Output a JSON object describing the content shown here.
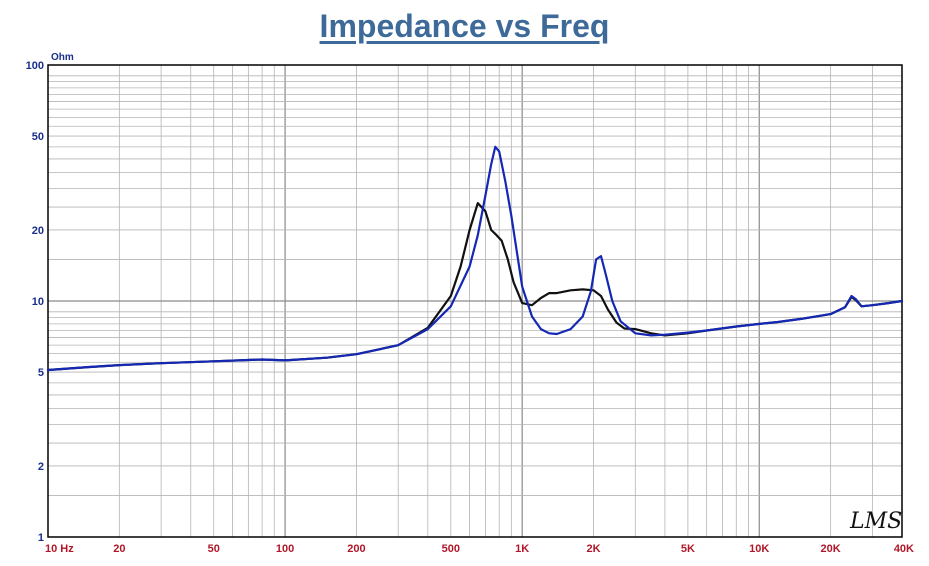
{
  "chart_data": {
    "type": "line",
    "title": "Impedance vs Freq",
    "ylabel": "Ohm",
    "x_scale": "log",
    "y_scale": "log",
    "xlim": [
      10,
      40000
    ],
    "ylim": [
      1,
      100
    ],
    "grid": true,
    "xticks": [
      {
        "value": 10,
        "label": "10  Hz"
      },
      {
        "value": 20,
        "label": "20"
      },
      {
        "value": 50,
        "label": "50"
      },
      {
        "value": 100,
        "label": "100"
      },
      {
        "value": 200,
        "label": "200"
      },
      {
        "value": 500,
        "label": "500"
      },
      {
        "value": 1000,
        "label": "1K"
      },
      {
        "value": 2000,
        "label": "2K"
      },
      {
        "value": 5000,
        "label": "5K"
      },
      {
        "value": 10000,
        "label": "10K"
      },
      {
        "value": 20000,
        "label": "20K"
      },
      {
        "value": 40000,
        "label": "40K"
      }
    ],
    "yticks": [
      {
        "value": 100,
        "label": "100"
      },
      {
        "value": 50,
        "label": "50"
      },
      {
        "value": 20,
        "label": "20"
      },
      {
        "value": 10,
        "label": "10"
      },
      {
        "value": 5,
        "label": "5"
      },
      {
        "value": 2,
        "label": "2"
      },
      {
        "value": 1,
        "label": "1"
      }
    ],
    "series": [
      {
        "color": "#1428b4",
        "x": [
          10,
          15,
          20,
          30,
          50,
          80,
          100,
          150,
          200,
          300,
          400,
          500,
          600,
          650,
          700,
          740,
          770,
          800,
          850,
          900,
          1000,
          1100,
          1200,
          1300,
          1400,
          1600,
          1800,
          1950,
          2050,
          2150,
          2250,
          2400,
          2600,
          3000,
          3500,
          4000,
          5000,
          6000,
          8000,
          10000,
          12000,
          15000,
          20000,
          23000,
          24500,
          25500,
          27000,
          30000,
          35000,
          40000
        ],
        "y": [
          5.1,
          5.25,
          5.35,
          5.45,
          5.55,
          5.65,
          5.6,
          5.75,
          5.95,
          6.5,
          7.6,
          9.5,
          14,
          19,
          28,
          38,
          45,
          43,
          32,
          23,
          11.5,
          8.6,
          7.6,
          7.3,
          7.25,
          7.6,
          8.6,
          11,
          15,
          15.5,
          13,
          10,
          8.2,
          7.3,
          7.15,
          7.2,
          7.35,
          7.5,
          7.8,
          8.0,
          8.15,
          8.4,
          8.8,
          9.4,
          10.5,
          10.2,
          9.5,
          9.6,
          9.8,
          10.0
        ]
      },
      {
        "color": "#111111",
        "x": [
          10,
          15,
          20,
          30,
          50,
          80,
          100,
          150,
          200,
          300,
          400,
          500,
          550,
          600,
          650,
          700,
          740,
          780,
          820,
          870,
          920,
          1000,
          1100,
          1200,
          1300,
          1400,
          1600,
          1800,
          2000,
          2150,
          2300,
          2500,
          2700,
          3000,
          3500,
          4000,
          5000,
          6000,
          8000,
          10000,
          12000,
          15000,
          20000,
          23000,
          24500,
          25500,
          27000,
          30000,
          35000,
          40000
        ],
        "y": [
          5.1,
          5.25,
          5.35,
          5.45,
          5.55,
          5.65,
          5.6,
          5.75,
          5.95,
          6.5,
          7.7,
          10.5,
          14,
          20,
          26,
          24,
          20,
          19,
          18,
          15,
          12,
          9.8,
          9.6,
          10.3,
          10.8,
          10.8,
          11.1,
          11.2,
          11.1,
          10.5,
          9.2,
          8.1,
          7.65,
          7.6,
          7.3,
          7.15,
          7.3,
          7.5,
          7.8,
          8.0,
          8.15,
          8.4,
          8.8,
          9.4,
          10.4,
          10.1,
          9.5,
          9.6,
          9.8,
          10.0
        ]
      }
    ]
  },
  "watermark": "LMS"
}
